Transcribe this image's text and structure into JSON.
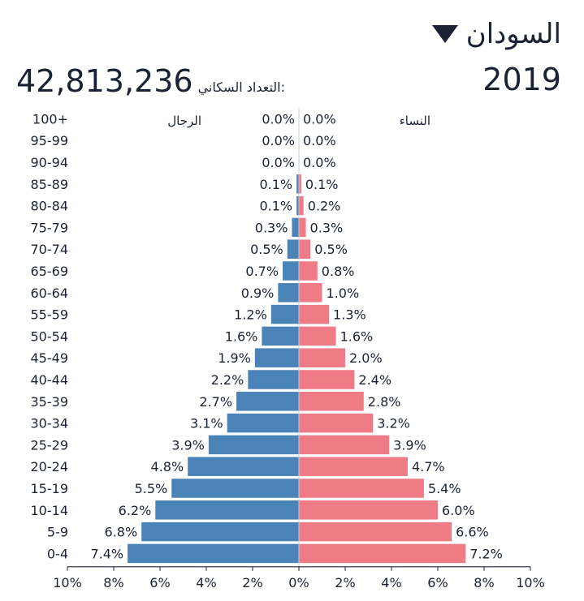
{
  "header": {
    "country": "السودان",
    "year": "2019",
    "population_label": "التعداد السكاني:",
    "population_value": "42,813,236"
  },
  "colors": {
    "male": "#4a83b8",
    "female": "#ef7b87"
  },
  "chart_data": {
    "type": "bar",
    "orientation": "horizontal-pyramid",
    "categories": [
      "100+",
      "95-99",
      "90-94",
      "85-89",
      "80-84",
      "75-79",
      "70-74",
      "65-69",
      "60-64",
      "55-59",
      "50-54",
      "45-49",
      "40-44",
      "35-39",
      "30-34",
      "25-29",
      "20-24",
      "15-19",
      "10-14",
      "5-9",
      "0-4"
    ],
    "series": [
      {
        "name": "الرجال",
        "side": "left",
        "values": [
          0.0,
          0.0,
          0.0,
          0.1,
          0.1,
          0.3,
          0.5,
          0.7,
          0.9,
          1.2,
          1.6,
          1.9,
          2.2,
          2.7,
          3.1,
          3.9,
          4.8,
          5.5,
          6.2,
          6.8,
          7.4
        ],
        "labels": [
          "0.0%",
          "0.0%",
          "0.0%",
          "0.1%",
          "0.1%",
          "0.3%",
          "0.5%",
          "0.7%",
          "0.9%",
          "1.2%",
          "1.6%",
          "1.9%",
          "2.2%",
          "2.7%",
          "3.1%",
          "3.9%",
          "4.8%",
          "5.5%",
          "6.2%",
          "6.8%",
          "7.4%"
        ]
      },
      {
        "name": "النساء",
        "side": "right",
        "values": [
          0.0,
          0.0,
          0.0,
          0.1,
          0.2,
          0.3,
          0.5,
          0.8,
          1.0,
          1.3,
          1.6,
          2.0,
          2.4,
          2.8,
          3.2,
          3.9,
          4.7,
          5.4,
          6.0,
          6.6,
          7.2
        ],
        "labels": [
          "0.0%",
          "0.0%",
          "0.0%",
          "0.1%",
          "0.2%",
          "0.3%",
          "0.5%",
          "0.8%",
          "1.0%",
          "1.3%",
          "1.6%",
          "2.0%",
          "2.4%",
          "2.8%",
          "3.2%",
          "3.9%",
          "4.7%",
          "5.4%",
          "6.0%",
          "6.6%",
          "7.2%"
        ]
      }
    ],
    "xlim": [
      -10,
      10
    ],
    "x_ticks": [
      -10,
      -8,
      -6,
      -4,
      -2,
      0,
      2,
      4,
      6,
      8,
      10
    ],
    "x_tick_labels": [
      "10%",
      "8%",
      "6%",
      "4%",
      "2%",
      "0%",
      "2%",
      "4%",
      "6%",
      "8%",
      "10%"
    ],
    "grid": false,
    "legend": "top"
  }
}
